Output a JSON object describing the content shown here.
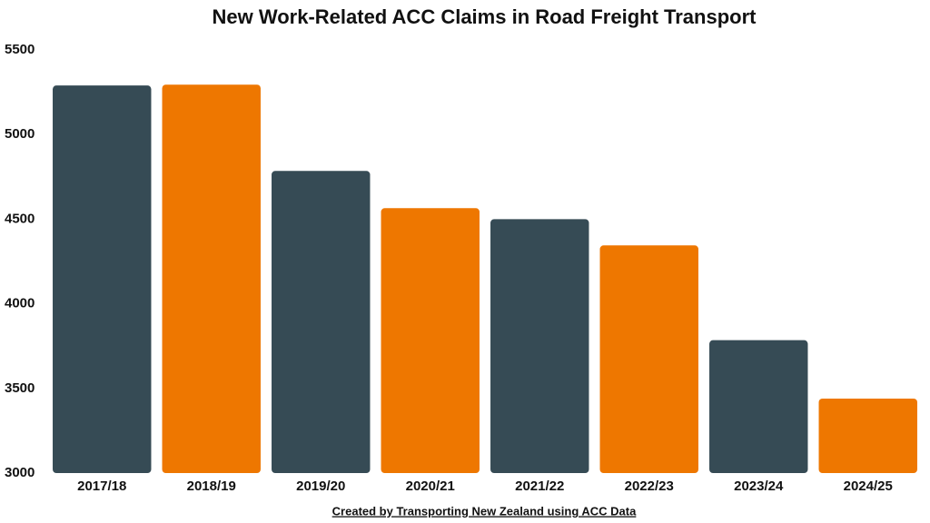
{
  "chart_data": {
    "type": "bar",
    "title": "New Work-Related ACC Claims in Road Freight Transport",
    "categories": [
      "2017/18",
      "2018/19",
      "2019/20",
      "2020/21",
      "2021/22",
      "2022/23",
      "2023/24",
      "2024/25"
    ],
    "values": [
      5290,
      5295,
      4785,
      4565,
      4500,
      4345,
      3785,
      3440
    ],
    "colors": [
      "#364b55",
      "#ee7700",
      "#364b55",
      "#ee7700",
      "#364b55",
      "#ee7700",
      "#364b55",
      "#ee7700"
    ],
    "ylim": [
      3000,
      5500
    ],
    "yticks": [
      3000,
      3500,
      4000,
      4500,
      5000,
      5500
    ],
    "grid": false,
    "source": "Created by Transporting New Zealand using ACC Data"
  }
}
